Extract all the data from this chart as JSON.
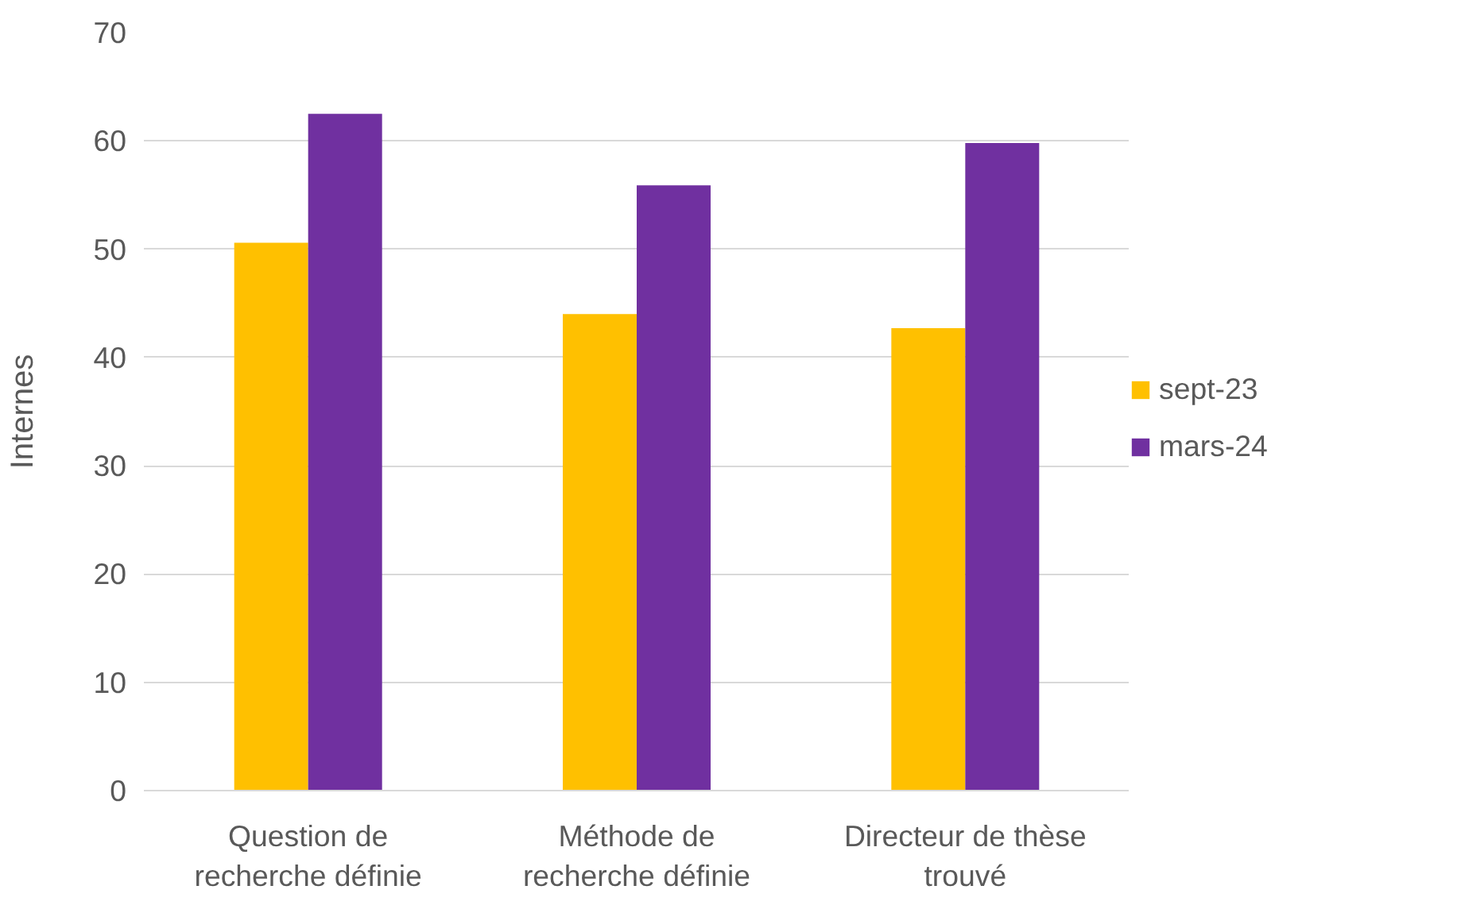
{
  "chart_data": {
    "type": "bar",
    "ylabel": "Internes",
    "categories": [
      "Question de recherche définie",
      "Méthode de recherche définie",
      "Directeur de thèse trouvé"
    ],
    "series": [
      {
        "name": "sept-23",
        "color": "#ffc000",
        "values": [
          50.6,
          44.0,
          42.7
        ]
      },
      {
        "name": "mars-24",
        "color": "#7030a0",
        "values": [
          62.5,
          55.9,
          59.8
        ]
      }
    ],
    "ylim": [
      0,
      70
    ],
    "yticks": [
      0,
      10,
      20,
      30,
      40,
      50,
      60,
      70
    ],
    "grid": "y",
    "legend": "right"
  }
}
